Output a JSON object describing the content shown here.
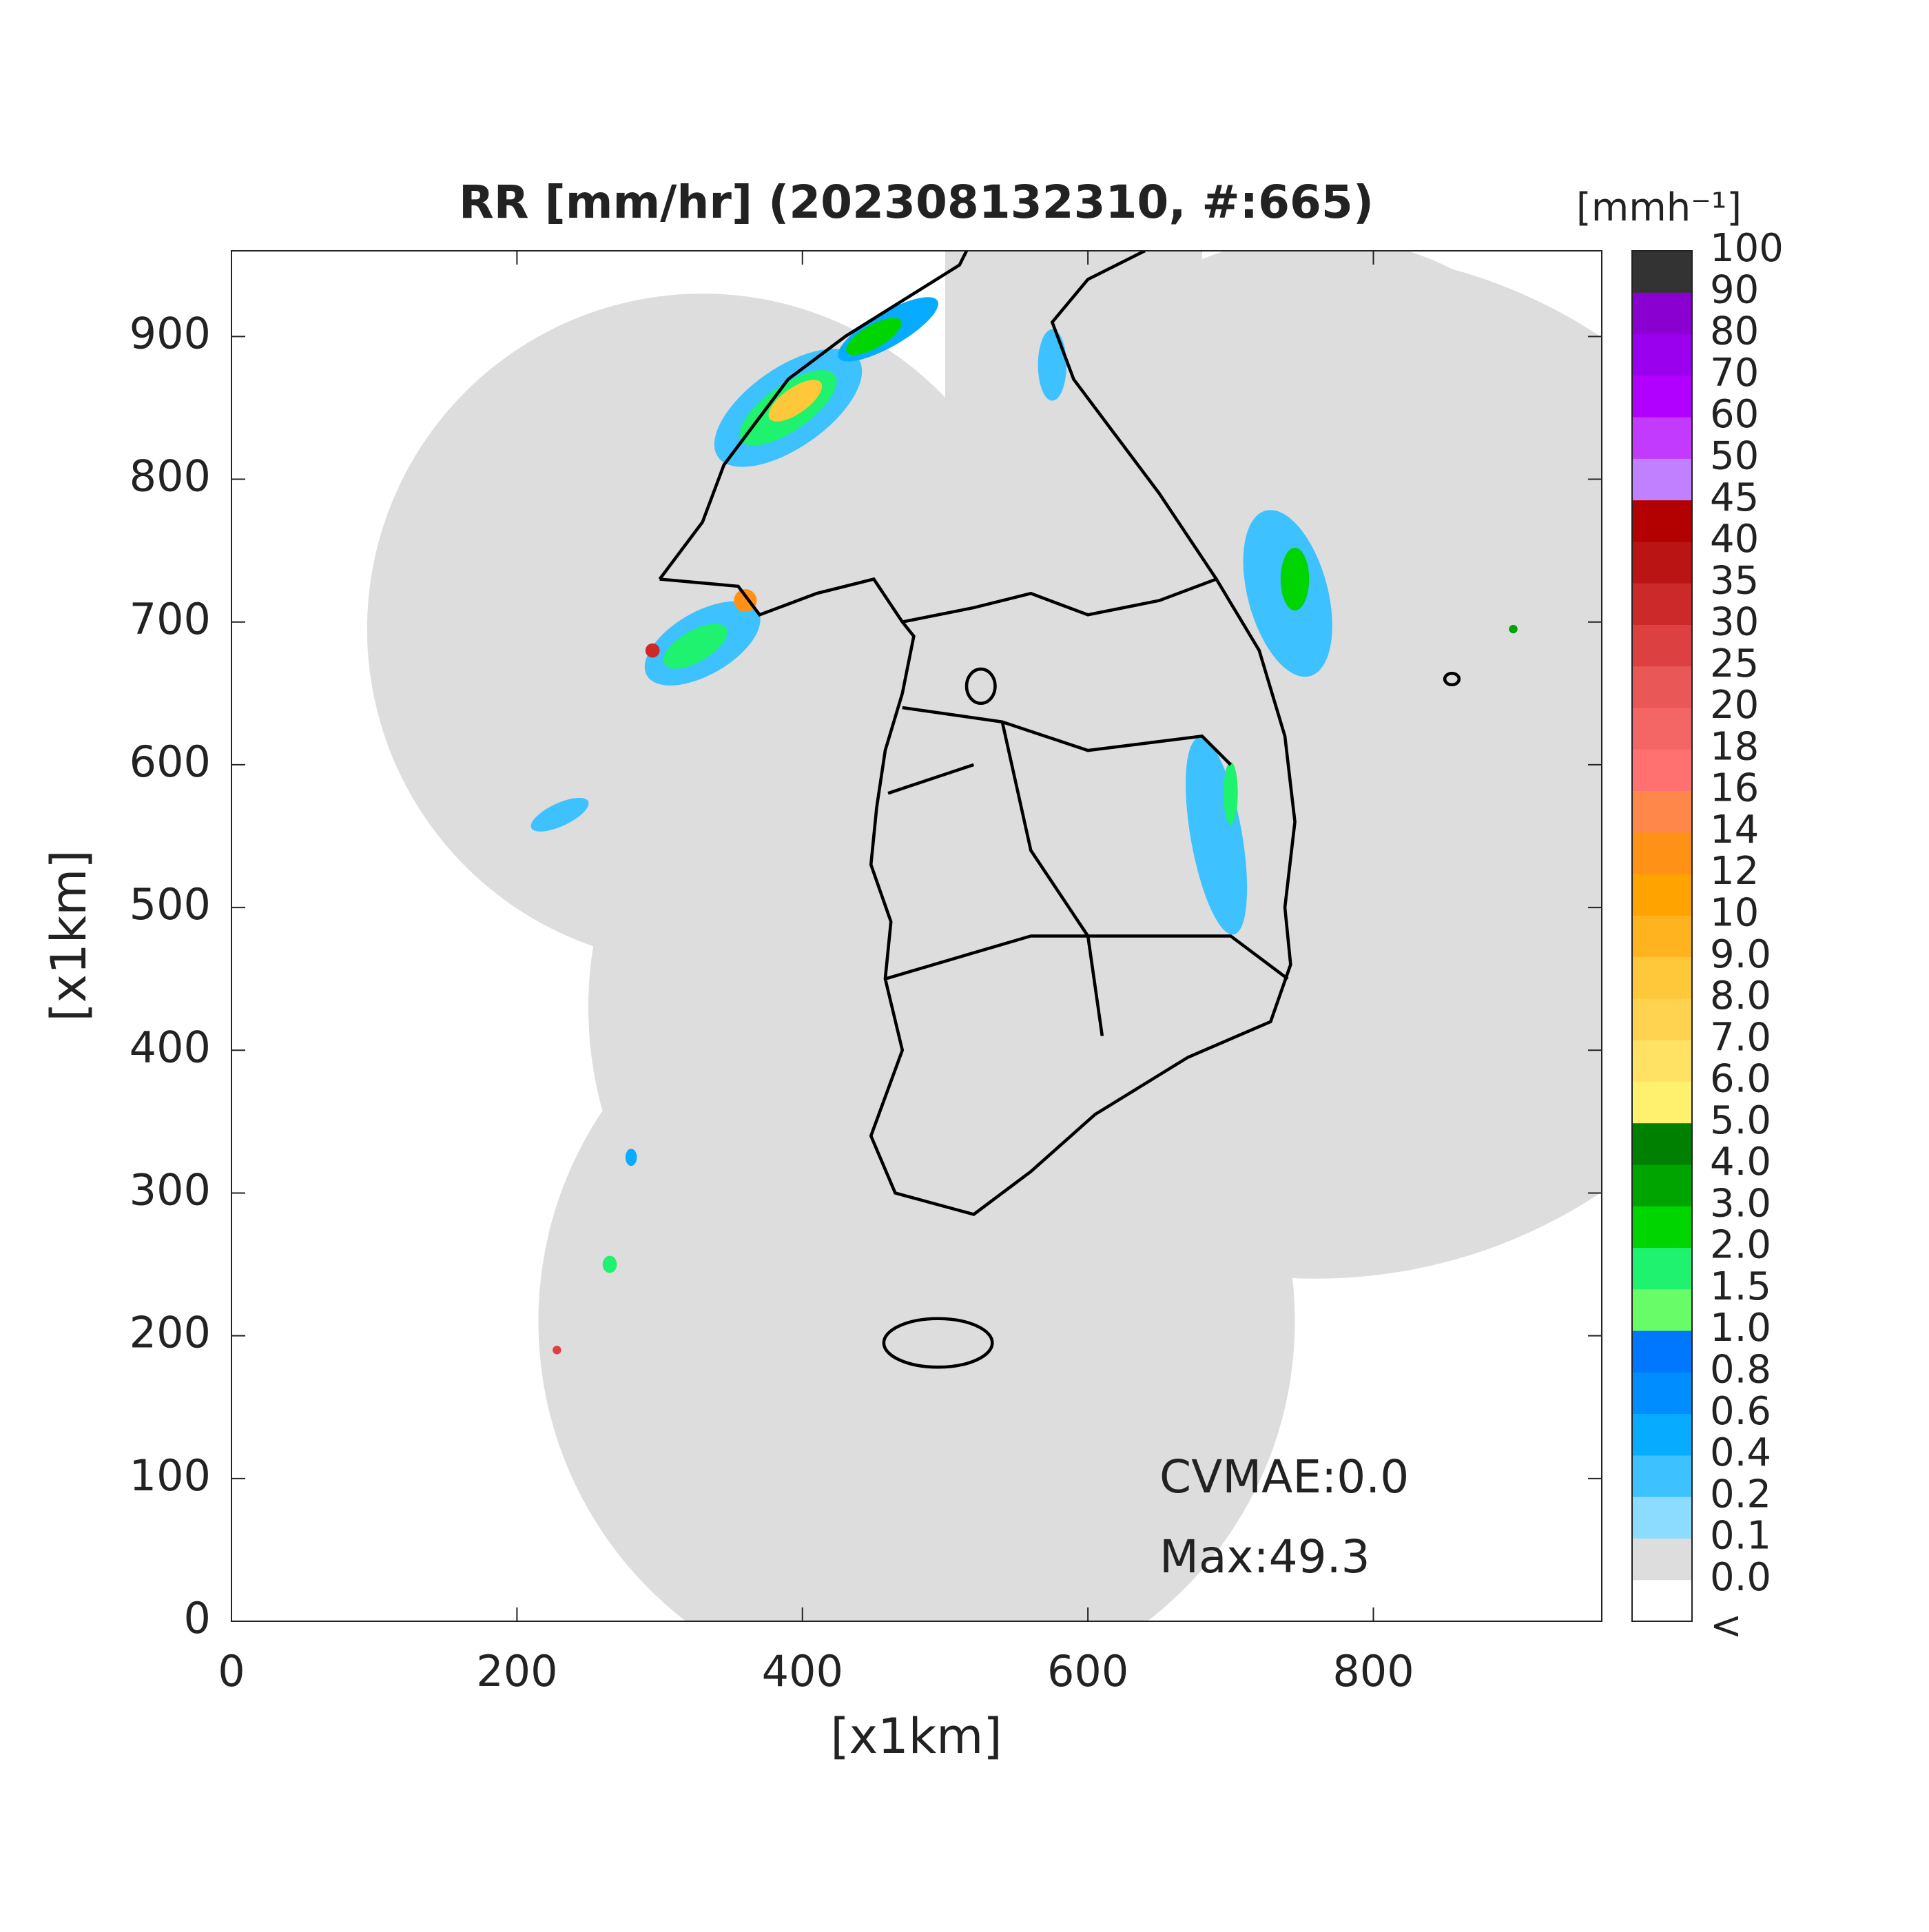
{
  "chart_data": {
    "type": "map",
    "title": "RR [mm/hr] (202308132310, #:665)",
    "xlabel": "[x1km]",
    "ylabel": "[x1km]",
    "xlim": [
      0,
      960
    ],
    "ylim": [
      0,
      960
    ],
    "xticks": [
      0,
      200,
      400,
      600,
      800
    ],
    "yticks": [
      0,
      100,
      200,
      300,
      400,
      500,
      600,
      700,
      800,
      900
    ],
    "annotations": [
      "CVMAE:0.0",
      "Max:49.3"
    ],
    "colorbar": {
      "label": "[mmh⁻¹]",
      "below_label": "<",
      "levels": [
        {
          "value": 0,
          "label": "0.0"
        },
        0.1,
        0.2,
        0.4,
        0.6,
        0.8,
        {
          "value": 1,
          "label": "1.0"
        },
        1.5,
        {
          "value": 2,
          "label": "2.0"
        },
        {
          "value": 3,
          "label": "3.0"
        },
        {
          "value": 4,
          "label": "4.0"
        },
        {
          "value": 5,
          "label": "5.0"
        },
        {
          "value": 6,
          "label": "6.0"
        },
        {
          "value": 7,
          "label": "7.0"
        },
        {
          "value": 8,
          "label": "8.0"
        },
        {
          "value": 9,
          "label": "9.0"
        },
        10,
        12,
        14,
        16,
        18,
        20,
        25,
        30,
        35,
        40,
        45,
        50,
        60,
        70,
        80,
        90,
        100
      ],
      "colors": [
        "#ffffff",
        "#dddddd",
        "#8cdcff",
        "#3ec1ff",
        "#07abff",
        "#008dff",
        "#0077ff",
        "#69fc69",
        "#1ef26e",
        "#00d500",
        "#00a400",
        "#008000",
        "#fff06e",
        "#ffe163",
        "#ffd24f",
        "#ffc73a",
        "#ffb31e",
        "#ffa300",
        "#ff9216",
        "#ff874a",
        "#ff7070",
        "#f46565",
        "#e95757",
        "#dd4040",
        "#cc2a2a",
        "#bb1414",
        "#b30000",
        "#c080ff",
        "#c33aff",
        "#b100ff",
        "#9a00ee",
        "#8a00d0",
        "#333333"
      ]
    }
  }
}
